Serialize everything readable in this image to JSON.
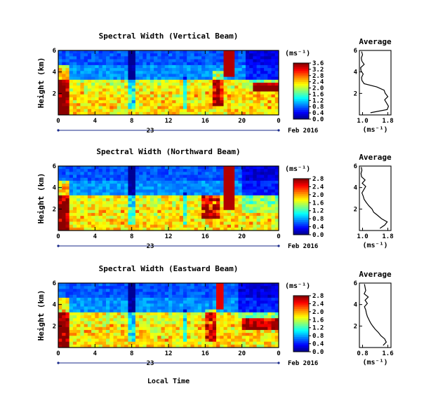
{
  "figure": {
    "xlabel": "Local Time",
    "date_label": "Feb 2016",
    "day_label": "23",
    "unit_label": "(ms⁻¹)",
    "avg_title": "Average"
  },
  "chart_data": [
    {
      "type": "heatmap",
      "title": "Spectral Width (Vertical Beam)",
      "ylabel": "Height (km)",
      "y_ticks": [
        2,
        4,
        6
      ],
      "ylim": [
        0,
        6
      ],
      "x_ticks": [
        "0",
        "4",
        "8",
        "12",
        "16",
        "20",
        "0"
      ],
      "xlim": [
        0,
        24
      ],
      "colorbar": {
        "min": 0.0,
        "max": 3.6,
        "ticks": [
          "0.0",
          "0.4",
          "0.8",
          "1.2",
          "1.6",
          "2.0",
          "2.4",
          "2.8",
          "3.2",
          "3.6"
        ]
      },
      "average": {
        "title": "Average",
        "xlabel": "(ms⁻¹)",
        "x_ticks": [
          "1.0",
          "1.8"
        ],
        "xlim": [
          0.9,
          1.9
        ],
        "height": [
          0.2,
          0.5,
          0.8,
          1.1,
          1.4,
          1.7,
          2.0,
          2.3,
          2.6,
          2.9,
          3.2,
          3.5,
          3.8,
          4.1,
          4.4,
          4.7,
          5.0,
          5.3,
          5.6,
          5.9
        ],
        "value": [
          1.25,
          1.78,
          1.82,
          1.76,
          1.7,
          1.8,
          1.72,
          1.68,
          1.45,
          1.05,
          0.98,
          0.97,
          1.02,
          0.95,
          0.94,
          1.05,
          0.98,
          0.96,
          1.0,
          0.97
        ]
      }
    },
    {
      "type": "heatmap",
      "title": "Spectral Width (Northward Beam)",
      "ylabel": "Height (km)",
      "y_ticks": [
        2,
        4,
        6
      ],
      "ylim": [
        0,
        6
      ],
      "x_ticks": [
        "0",
        "4",
        "8",
        "12",
        "16",
        "20",
        "0"
      ],
      "xlim": [
        0,
        24
      ],
      "colorbar": {
        "min": 0.0,
        "max": 2.8,
        "ticks": [
          "0.0",
          "0.4",
          "0.8",
          "1.2",
          "1.6",
          "2.0",
          "2.4",
          "2.8"
        ]
      },
      "average": {
        "title": "Average",
        "xlabel": "(ms⁻¹)",
        "x_ticks": [
          "1.0",
          "1.8"
        ],
        "xlim": [
          0.9,
          1.9
        ],
        "height": [
          0.2,
          0.5,
          0.8,
          1.1,
          1.4,
          1.7,
          2.0,
          2.3,
          2.6,
          2.9,
          3.2,
          3.5,
          3.8,
          4.1,
          4.4,
          4.7,
          5.0,
          5.3,
          5.6,
          5.9
        ],
        "value": [
          1.55,
          1.7,
          1.78,
          1.6,
          1.48,
          1.35,
          1.3,
          1.2,
          1.12,
          1.05,
          1.02,
          0.98,
          1.04,
          1.1,
          0.99,
          1.08,
          0.97,
          0.95,
          0.98,
          0.96
        ]
      }
    },
    {
      "type": "heatmap",
      "title": "Spectral Width (Eastward Beam)",
      "ylabel": "Height (km)",
      "y_ticks": [
        2,
        4,
        6
      ],
      "ylim": [
        0,
        6
      ],
      "x_ticks": [
        "0",
        "4",
        "8",
        "12",
        "16",
        "20",
        "0"
      ],
      "xlim": [
        0,
        24
      ],
      "colorbar": {
        "min": 0.0,
        "max": 2.8,
        "ticks": [
          "0.0",
          "0.4",
          "0.8",
          "1.2",
          "1.6",
          "2.0",
          "2.4",
          "2.8"
        ]
      },
      "average": {
        "title": "Average",
        "xlabel": "(ms⁻¹)",
        "x_ticks": [
          "0.8",
          "1.6"
        ],
        "xlim": [
          0.7,
          1.7
        ],
        "height": [
          0.2,
          0.5,
          0.8,
          1.1,
          1.4,
          1.7,
          2.0,
          2.3,
          2.6,
          2.9,
          3.2,
          3.5,
          3.8,
          4.1,
          4.4,
          4.7,
          5.0,
          5.3,
          5.6,
          5.9
        ],
        "value": [
          1.45,
          1.55,
          1.5,
          1.38,
          1.3,
          1.2,
          1.12,
          1.05,
          1.0,
          0.95,
          0.92,
          0.9,
          0.86,
          0.95,
          0.88,
          0.98,
          0.85,
          0.9,
          0.88,
          0.86
        ]
      }
    }
  ]
}
